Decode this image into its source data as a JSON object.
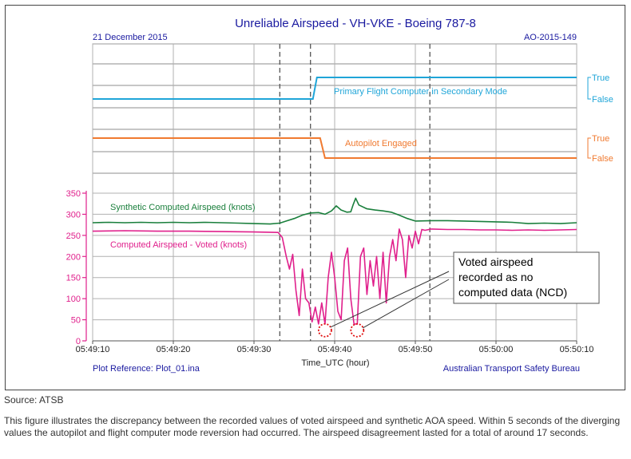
{
  "source_text": "Source:  ATSB",
  "caption_text": "This figure illustrates the discrepancy between the recorded values of voted airspeed and synthetic AOA speed. Within 5 seconds of the diverging values the autopilot and flight computer mode reversion had occurred. The airspeed disagreement lasted for a total of around 17 seconds.",
  "chart_data": {
    "type": "line",
    "title": "Unreliable Airspeed - VH-VKE - Boeing 787-8",
    "date_label": "21 December 2015",
    "report_id": "AO-2015-149",
    "plot_reference": "Plot Reference: Plot_01.ina",
    "agency": "Australian Transport Safety Bureau",
    "xlabel": "Time_UTC (hour)",
    "x_ticks": [
      "05:49:10",
      "05:49:20",
      "05:49:30",
      "05:49:40",
      "05:49:50",
      "05:50:00",
      "05:50:10"
    ],
    "x_range_seconds_label": [
      "05:49:10",
      "05:50:10"
    ],
    "markers": [
      "05:49:33.2",
      "05:49:37",
      "05:49:51.8"
    ],
    "y_ticks": [
      0,
      50,
      100,
      150,
      200,
      250,
      300,
      350
    ],
    "ylim": [
      0,
      350
    ],
    "annotation": {
      "lines": [
        "Voted airspeed",
        "recorded as no",
        "computed data (NCD)"
      ],
      "circled_points": [
        {
          "time": "05:49:38.8",
          "value": 25
        },
        {
          "time": "05:49:42.8",
          "value": 25
        }
      ]
    },
    "discrete_series": [
      {
        "name": "Primary Flight Computer in Secondary Mode",
        "color": "#1fa5d8",
        "true_label": "True",
        "false_label": "False",
        "points": [
          [
            "05:49:10",
            "False"
          ],
          [
            "05:49:37.3",
            "False"
          ],
          [
            "05:49:37.8",
            "True"
          ],
          [
            "05:50:10",
            "True"
          ]
        ]
      },
      {
        "name": "Autopilot Engaged",
        "color": "#f07a30",
        "true_label": "True",
        "false_label": "False",
        "points": [
          [
            "05:49:10",
            "True"
          ],
          [
            "05:49:38.2",
            "True"
          ],
          [
            "05:49:38.8",
            "False"
          ],
          [
            "05:50:10",
            "False"
          ]
        ]
      }
    ],
    "series": [
      {
        "name": "Synthetic Computed Airspeed (knots)",
        "color": "#1a7f3c",
        "points": [
          [
            "05:49:10",
            280
          ],
          [
            "05:49:12",
            281
          ],
          [
            "05:49:14",
            280
          ],
          [
            "05:49:16",
            281
          ],
          [
            "05:49:18",
            280
          ],
          [
            "05:49:20",
            281
          ],
          [
            "05:49:22",
            280
          ],
          [
            "05:49:24",
            281
          ],
          [
            "05:49:26",
            280
          ],
          [
            "05:49:28",
            279
          ],
          [
            "05:49:30",
            278
          ],
          [
            "05:49:32",
            277
          ],
          [
            "05:49:33.2",
            279
          ],
          [
            "05:49:34",
            284
          ],
          [
            "05:49:35",
            290
          ],
          [
            "05:49:36",
            298
          ],
          [
            "05:49:37",
            303
          ],
          [
            "05:49:38",
            304
          ],
          [
            "05:49:38.8",
            300
          ],
          [
            "05:49:39.6",
            308
          ],
          [
            "05:49:40.2",
            320
          ],
          [
            "05:49:40.8",
            310
          ],
          [
            "05:49:41.5",
            305
          ],
          [
            "05:49:42",
            306
          ],
          [
            "05:49:42.3",
            323
          ],
          [
            "05:49:42.6",
            338
          ],
          [
            "05:49:43",
            322
          ],
          [
            "05:49:44",
            313
          ],
          [
            "05:49:45",
            310
          ],
          [
            "05:49:46",
            308
          ],
          [
            "05:49:47",
            305
          ],
          [
            "05:49:48",
            298
          ],
          [
            "05:49:49",
            290
          ],
          [
            "05:49:50",
            284
          ],
          [
            "05:49:52",
            285
          ],
          [
            "05:49:54",
            285
          ],
          [
            "05:49:56",
            284
          ],
          [
            "05:49:58",
            283
          ],
          [
            "05:50:00",
            282
          ],
          [
            "05:50:02",
            281
          ],
          [
            "05:50:04",
            278
          ],
          [
            "05:50:06",
            279
          ],
          [
            "05:50:08",
            278
          ],
          [
            "05:50:10",
            280
          ]
        ]
      },
      {
        "name": "Computed Airspeed - Voted (knots)",
        "color": "#e0208c",
        "points": [
          [
            "05:49:10",
            260
          ],
          [
            "05:49:14",
            261
          ],
          [
            "05:49:18",
            260
          ],
          [
            "05:49:22",
            260
          ],
          [
            "05:49:26",
            259
          ],
          [
            "05:49:30",
            258
          ],
          [
            "05:49:33",
            257
          ],
          [
            "05:49:33.5",
            245
          ],
          [
            "05:49:34",
            200
          ],
          [
            "05:49:34.4",
            170
          ],
          [
            "05:49:34.8",
            205
          ],
          [
            "05:49:35.2",
            120
          ],
          [
            "05:49:35.6",
            60
          ],
          [
            "05:49:36",
            170
          ],
          [
            "05:49:36.4",
            100
          ],
          [
            "05:49:36.8",
            90
          ],
          [
            "05:49:37.2",
            45
          ],
          [
            "05:49:37.6",
            80
          ],
          [
            "05:49:38",
            40
          ],
          [
            "05:49:38.4",
            90
          ],
          [
            "05:49:38.8",
            40
          ],
          [
            "05:49:39.2",
            150
          ],
          [
            "05:49:39.6",
            210
          ],
          [
            "05:49:40",
            150
          ],
          [
            "05:49:40.4",
            70
          ],
          [
            "05:49:40.8",
            50
          ],
          [
            "05:49:41.2",
            190
          ],
          [
            "05:49:41.6",
            220
          ],
          [
            "05:49:42",
            100
          ],
          [
            "05:49:42.4",
            40
          ],
          [
            "05:49:42.8",
            40
          ],
          [
            "05:49:43.2",
            200
          ],
          [
            "05:49:43.6",
            220
          ],
          [
            "05:49:44",
            110
          ],
          [
            "05:49:44.4",
            190
          ],
          [
            "05:49:44.8",
            130
          ],
          [
            "05:49:45.2",
            200
          ],
          [
            "05:49:45.6",
            100
          ],
          [
            "05:49:46",
            210
          ],
          [
            "05:49:46.4",
            90
          ],
          [
            "05:49:46.8",
            200
          ],
          [
            "05:49:47.2",
            240
          ],
          [
            "05:49:47.6",
            190
          ],
          [
            "05:49:48",
            265
          ],
          [
            "05:49:48.4",
            240
          ],
          [
            "05:49:48.8",
            150
          ],
          [
            "05:49:49.2",
            250
          ],
          [
            "05:49:49.6",
            220
          ],
          [
            "05:49:50",
            260
          ],
          [
            "05:49:50.4",
            230
          ],
          [
            "05:49:50.8",
            264
          ],
          [
            "05:49:51.2",
            262
          ],
          [
            "05:49:52",
            265
          ],
          [
            "05:49:54",
            264
          ],
          [
            "05:49:56",
            264
          ],
          [
            "05:49:58",
            263
          ],
          [
            "05:50:00",
            263
          ],
          [
            "05:50:02",
            262
          ],
          [
            "05:50:04",
            263
          ],
          [
            "05:50:06",
            262
          ],
          [
            "05:50:08",
            263
          ],
          [
            "05:50:10",
            264
          ]
        ]
      }
    ]
  }
}
